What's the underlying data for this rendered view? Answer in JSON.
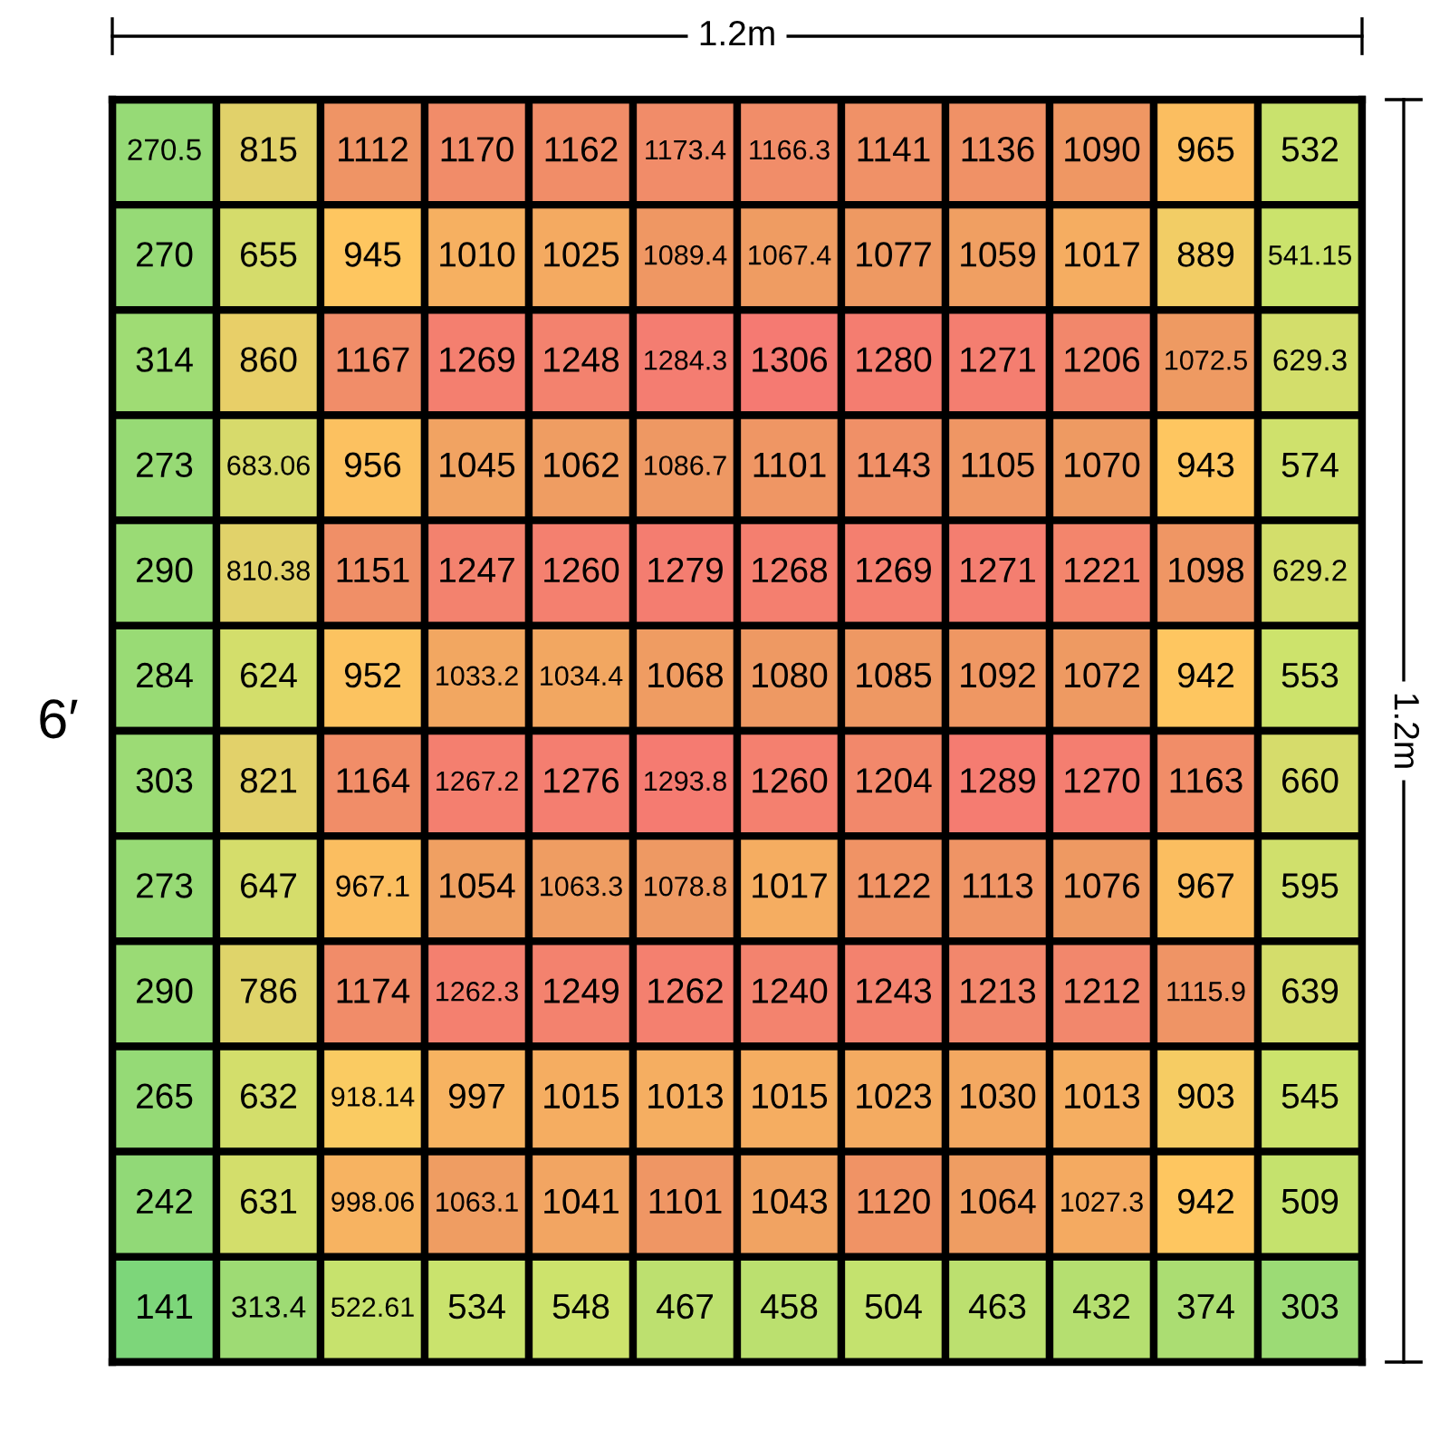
{
  "chart_data": {
    "type": "heatmap",
    "categories": [
      null,
      null,
      null,
      null,
      null,
      null,
      null,
      null,
      null,
      null,
      null,
      null
    ],
    "y_categories": [
      null,
      null,
      null,
      null,
      null,
      null,
      null,
      null,
      null,
      null,
      null,
      null
    ],
    "cells": [
      [
        270.5,
        815,
        1112,
        1170,
        1162,
        1173.4,
        1166.3,
        1141,
        1136,
        1090,
        965,
        532
      ],
      [
        270,
        655,
        945,
        1010,
        1025,
        1089.4,
        1067.4,
        1077,
        1059,
        1017,
        889,
        541.15
      ],
      [
        314,
        860,
        1167,
        1269,
        1248,
        1284.3,
        1306,
        1280,
        1271,
        1206,
        1072.5,
        629.3
      ],
      [
        273,
        683.06,
        956,
        1045,
        1062,
        1086.7,
        1101,
        1143,
        1105,
        1070,
        943,
        574
      ],
      [
        290,
        810.38,
        1151,
        1247,
        1260,
        1279,
        1268,
        1269,
        1271,
        1221,
        1098,
        629.2
      ],
      [
        284,
        624,
        952,
        1033.2,
        1034.4,
        1068,
        1080,
        1085,
        1092,
        1072,
        942,
        553
      ],
      [
        303,
        821,
        1164,
        1267.2,
        1276,
        1293.8,
        1260,
        1204,
        1289,
        1270,
        1163,
        660
      ],
      [
        273,
        647,
        967.1,
        1054,
        1063.3,
        1078.8,
        1017,
        1122,
        1113,
        1076,
        967,
        595
      ],
      [
        290,
        786,
        1174,
        1262.3,
        1249,
        1262,
        1240,
        1243,
        1213,
        1212,
        1115.9,
        639
      ],
      [
        265,
        632,
        918.14,
        997,
        1015,
        1013,
        1015,
        1023,
        1030,
        1013,
        903,
        545
      ],
      [
        242,
        631,
        998.06,
        1063.1,
        1041,
        1101,
        1043,
        1120,
        1064,
        1027.3,
        942,
        509
      ],
      [
        141,
        313.4,
        522.61,
        534,
        548,
        467,
        458,
        504,
        463,
        432,
        374,
        303
      ]
    ],
    "data_labels": true,
    "annotations": [
      "1.2m",
      "1.2m",
      "6′"
    ]
  }
}
